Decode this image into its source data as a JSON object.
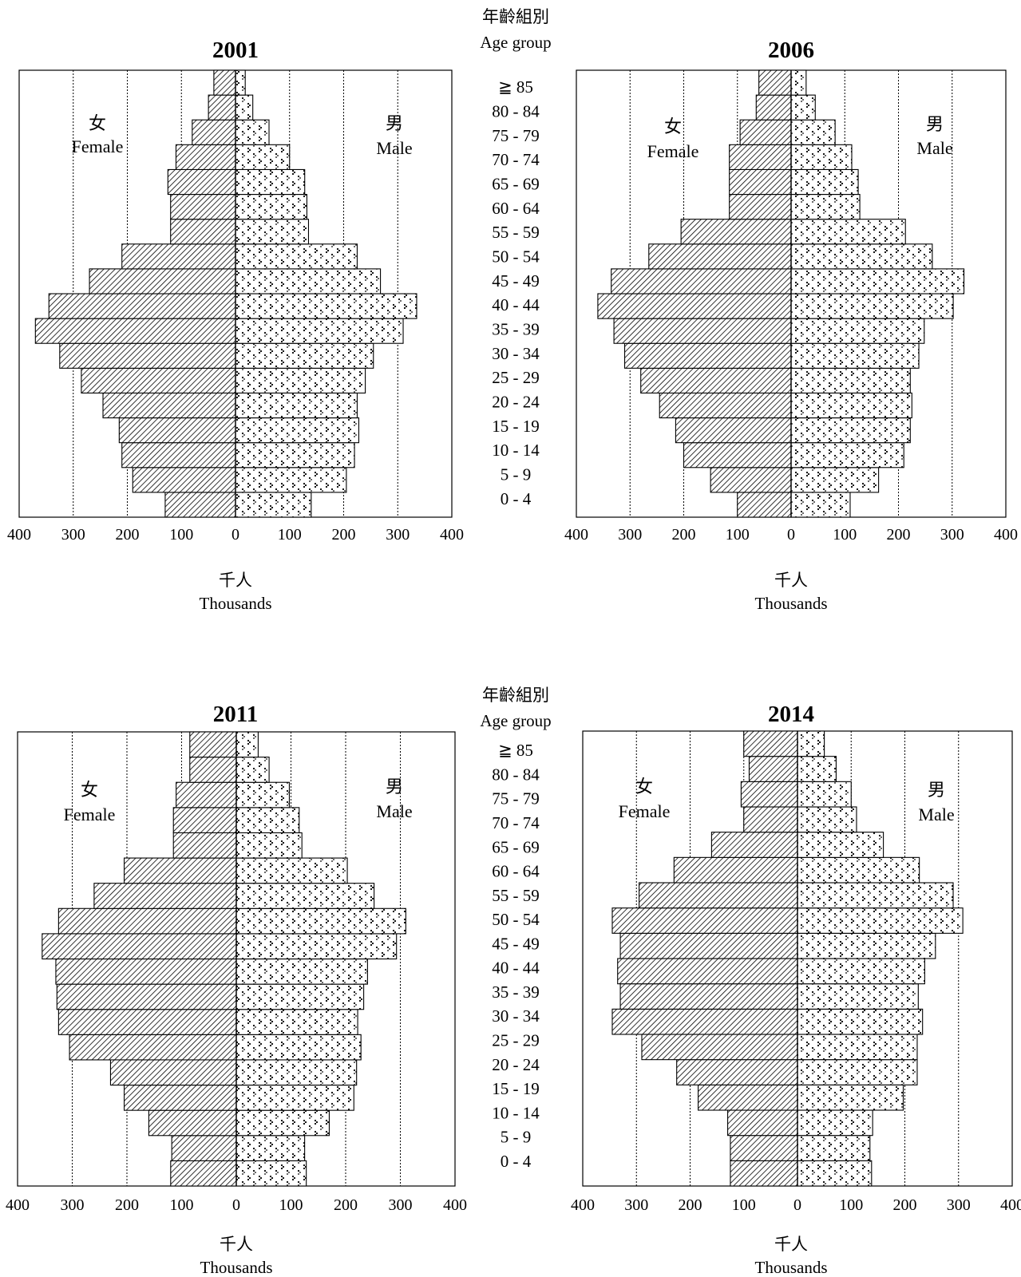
{
  "age_group_label_zh": "年齡組別",
  "age_group_label_en": "Age group",
  "female_label_zh": "女",
  "female_label_en": "Female",
  "male_label_zh": "男",
  "male_label_en": "Male",
  "unit_label_zh": "千人",
  "unit_label_en": "Thousands",
  "colors": {
    "bar_edge": "#000000",
    "female_hatch": "#000000",
    "male_dots": "#000000",
    "gridline": "#000000",
    "background": "#ffffff"
  },
  "chart_data": [
    {
      "type": "bar",
      "orientation": "horizontal",
      "layout": "population-pyramid",
      "title": "2001",
      "categories": [
        "0 - 4",
        "5 - 9",
        "10 - 14",
        "15 - 19",
        "20 - 24",
        "25 - 29",
        "30 - 34",
        "35 - 39",
        "40 - 44",
        "45 - 49",
        "50 - 54",
        "55 - 59",
        "60 - 64",
        "65 - 69",
        "70 - 74",
        "75 - 79",
        "80 - 84",
        "≧ 85"
      ],
      "series": [
        {
          "name": "Female",
          "values": [
            130,
            190,
            210,
            215,
            245,
            285,
            325,
            370,
            345,
            270,
            210,
            120,
            120,
            125,
            110,
            80,
            50,
            40
          ]
        },
        {
          "name": "Male",
          "values": [
            140,
            205,
            220,
            228,
            225,
            240,
            255,
            310,
            335,
            268,
            225,
            135,
            132,
            128,
            100,
            62,
            32,
            18
          ]
        }
      ],
      "xlim": [
        -400,
        400
      ],
      "xticks": [
        400,
        300,
        200,
        100,
        0,
        100,
        200,
        300,
        400
      ],
      "grid": true
    },
    {
      "type": "bar",
      "orientation": "horizontal",
      "layout": "population-pyramid",
      "title": "2006",
      "categories": [
        "0 - 4",
        "5 - 9",
        "10 - 14",
        "15 - 19",
        "20 - 24",
        "25 - 29",
        "30 - 34",
        "35 - 39",
        "40 - 44",
        "45 - 49",
        "50 - 54",
        "55 - 59",
        "60 - 64",
        "65 - 69",
        "70 - 74",
        "75 - 79",
        "80 - 84",
        "≧ 85"
      ],
      "series": [
        {
          "name": "Female",
          "values": [
            100,
            150,
            200,
            215,
            245,
            280,
            310,
            330,
            360,
            335,
            265,
            205,
            115,
            115,
            115,
            95,
            65,
            60
          ]
        },
        {
          "name": "Male",
          "values": [
            110,
            163,
            210,
            222,
            225,
            222,
            238,
            248,
            302,
            322,
            263,
            213,
            128,
            125,
            113,
            82,
            45,
            28
          ]
        }
      ],
      "xlim": [
        -400,
        400
      ],
      "xticks": [
        400,
        300,
        200,
        100,
        0,
        100,
        200,
        300,
        400
      ],
      "grid": true
    },
    {
      "type": "bar",
      "orientation": "horizontal",
      "layout": "population-pyramid",
      "title": "2011",
      "categories": [
        "0 - 4",
        "5 - 9",
        "10 - 14",
        "15 - 19",
        "20 - 24",
        "25 - 29",
        "30 - 34",
        "35 - 39",
        "40 - 44",
        "45 - 49",
        "50 - 54",
        "55 - 59",
        "60 - 64",
        "65 - 69",
        "70 - 74",
        "75 - 79",
        "80 - 84",
        "≧ 85"
      ],
      "series": [
        {
          "name": "Female",
          "values": [
            120,
            118,
            160,
            205,
            230,
            305,
            325,
            328,
            330,
            355,
            325,
            260,
            205,
            115,
            115,
            110,
            85,
            85
          ]
        },
        {
          "name": "Male",
          "values": [
            128,
            125,
            170,
            215,
            220,
            228,
            222,
            233,
            240,
            293,
            310,
            252,
            203,
            120,
            115,
            97,
            60,
            40
          ]
        }
      ],
      "xlim": [
        -400,
        400
      ],
      "xticks": [
        400,
        300,
        200,
        100,
        0,
        100,
        200,
        300,
        400
      ],
      "grid": true
    },
    {
      "type": "bar",
      "orientation": "horizontal",
      "layout": "population-pyramid",
      "title": "2014",
      "categories": [
        "0 - 4",
        "5 - 9",
        "10 - 14",
        "15 - 19",
        "20 - 24",
        "25 - 29",
        "30 - 34",
        "35 - 39",
        "40 - 44",
        "45 - 49",
        "50 - 54",
        "55 - 59",
        "60 - 64",
        "65 - 69",
        "70 - 74",
        "75 - 79",
        "80 - 84",
        "≧ 85"
      ],
      "series": [
        {
          "name": "Female",
          "values": [
            125,
            125,
            130,
            185,
            225,
            290,
            345,
            330,
            335,
            330,
            345,
            295,
            230,
            160,
            100,
            105,
            90,
            100
          ]
        },
        {
          "name": "Male",
          "values": [
            138,
            135,
            140,
            197,
            223,
            223,
            233,
            225,
            237,
            257,
            308,
            290,
            227,
            160,
            110,
            100,
            72,
            50
          ]
        }
      ],
      "xlim": [
        -400,
        400
      ],
      "xticks": [
        400,
        300,
        200,
        100,
        0,
        100,
        200,
        300,
        400
      ],
      "grid": true
    }
  ]
}
